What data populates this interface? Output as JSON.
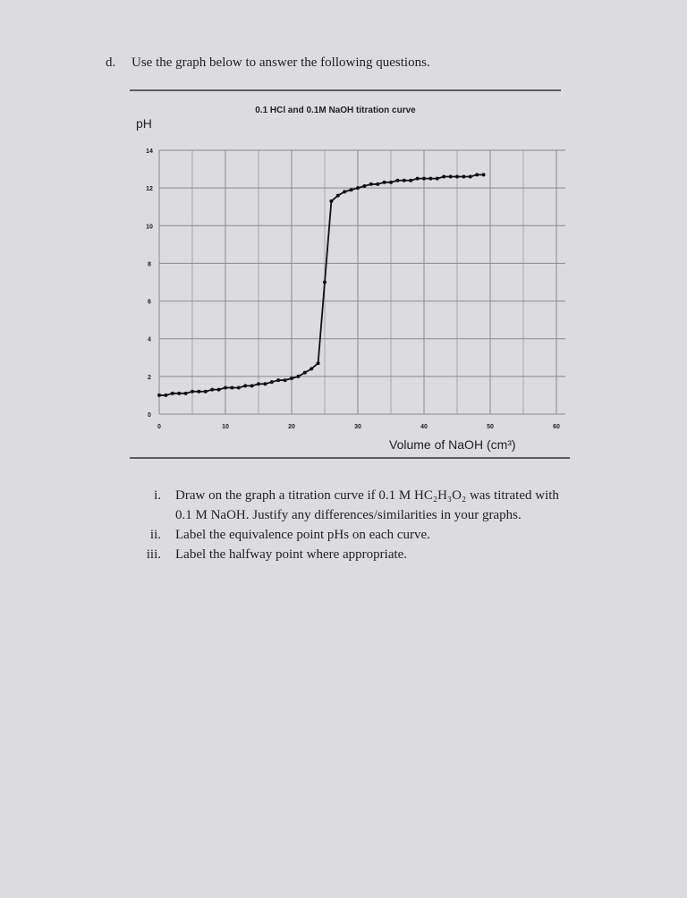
{
  "header": {
    "label": "d.",
    "text": "Use the graph below to answer the following questions."
  },
  "chart_data": {
    "type": "line",
    "title": "0.1 HCl and 0.1M NaOH titration curve",
    "y_label": "pH",
    "x_label": "Volume of NaOH (cm³)",
    "x": [
      0,
      1,
      2,
      3,
      4,
      5,
      6,
      7,
      8,
      9,
      10,
      11,
      12,
      13,
      14,
      15,
      16,
      17,
      18,
      19,
      20,
      21,
      22,
      23,
      24,
      25,
      26,
      27,
      28,
      29,
      30,
      31,
      32,
      33,
      34,
      35,
      36,
      37,
      38,
      39,
      40,
      41,
      42,
      43,
      44,
      45,
      46,
      47,
      48,
      49
    ],
    "values": [
      1.0,
      1.0,
      1.1,
      1.1,
      1.1,
      1.2,
      1.2,
      1.2,
      1.3,
      1.3,
      1.4,
      1.4,
      1.4,
      1.5,
      1.5,
      1.6,
      1.6,
      1.7,
      1.8,
      1.8,
      1.9,
      2.0,
      2.2,
      2.4,
      2.7,
      7.0,
      11.3,
      11.6,
      11.8,
      11.9,
      12.0,
      12.1,
      12.2,
      12.2,
      12.3,
      12.3,
      12.4,
      12.4,
      12.4,
      12.5,
      12.5,
      12.5,
      12.5,
      12.6,
      12.6,
      12.6,
      12.6,
      12.6,
      12.7,
      12.7
    ],
    "color": "#111111",
    "xlim": [
      0,
      60
    ],
    "xticks": [
      0,
      10,
      20,
      30,
      40,
      50,
      60
    ],
    "ylim": [
      0,
      14
    ],
    "yticks": [
      0,
      2,
      4,
      6,
      8,
      10,
      12,
      14
    ],
    "grid": true
  },
  "questions": [
    {
      "label": "i.",
      "lines": [
        "Draw on the graph a titration curve if 0.1 M HC₂H₃O₂ was titrated with",
        "0.1 M NaOH.  Justify any differences/similarities in your graphs."
      ]
    },
    {
      "label": "ii.",
      "lines": [
        "Label the equivalence point pHs on each curve."
      ]
    },
    {
      "label": "iii.",
      "lines": [
        "Label the halfway point where appropriate."
      ]
    }
  ]
}
